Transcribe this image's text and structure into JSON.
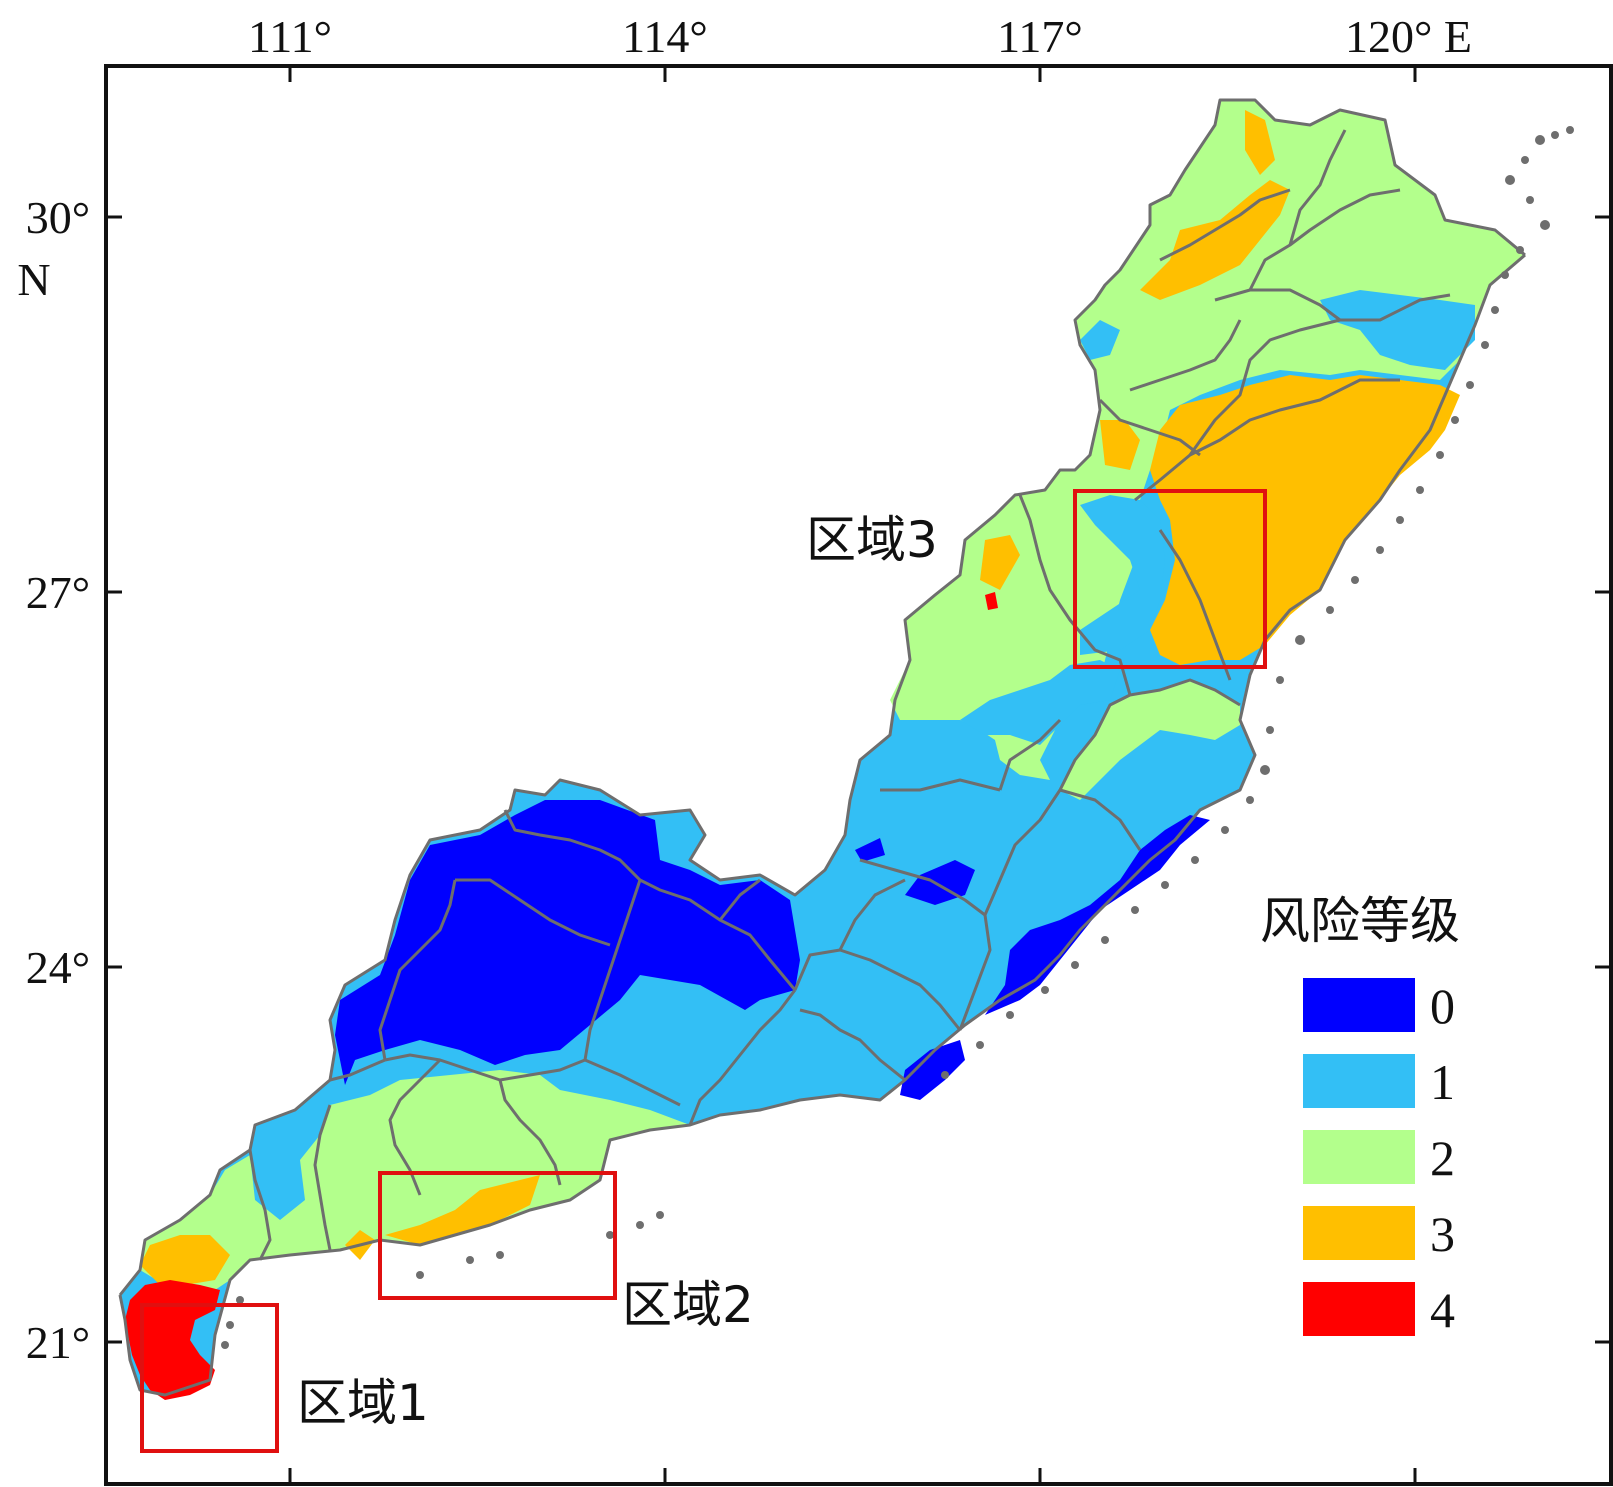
{
  "map": {
    "x_ticks": [
      "111°",
      "114°",
      "117°",
      "120° E"
    ],
    "y_ticks": [
      "30°",
      "27°",
      "24°",
      "21°"
    ],
    "y_unit": "N",
    "regions": [
      "区域1",
      "区域2",
      "区域3"
    ],
    "legend": {
      "title": "风险等级",
      "levels": [
        {
          "label": "0",
          "color": "#0000ff"
        },
        {
          "label": "1",
          "color": "#33bff5"
        },
        {
          "label": "2",
          "color": "#b3ff8c"
        },
        {
          "label": "3",
          "color": "#ffbf00"
        },
        {
          "label": "4",
          "color": "#ff0000"
        }
      ]
    },
    "colors": {
      "frame": "#111111",
      "boundary": "#6e6e6e",
      "highlight_box": "#e01010"
    }
  }
}
